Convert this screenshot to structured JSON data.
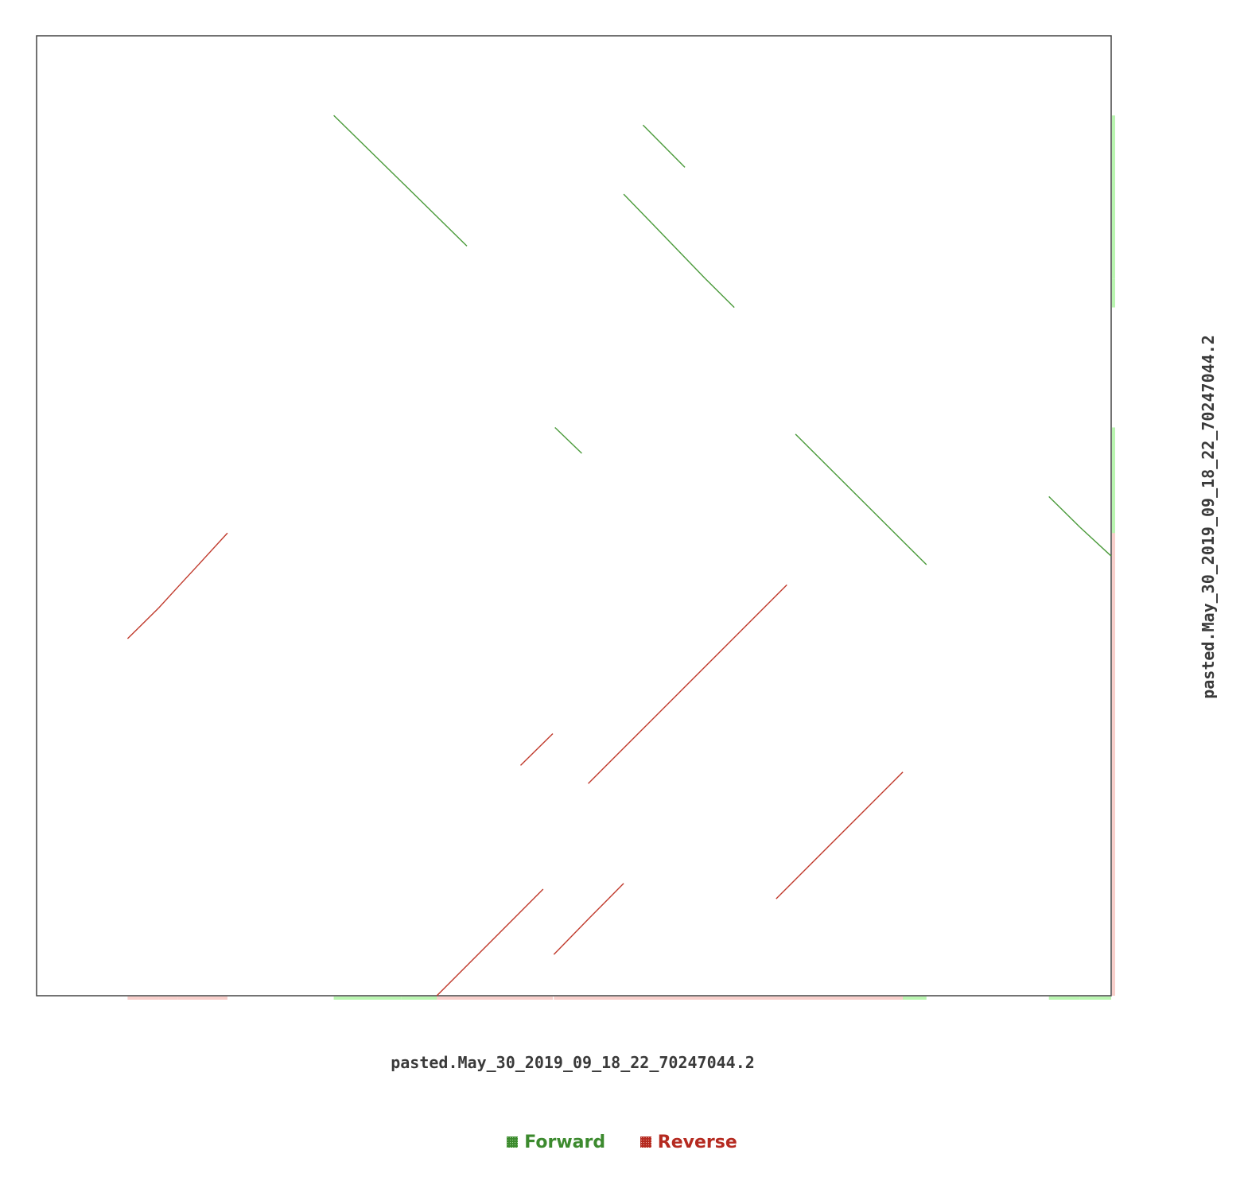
{
  "chart_data": {
    "type": "scatter",
    "plot_style": "dotplot",
    "title": "",
    "xlabel": "pasted.May_30_2019_09_18_22_70247044.2",
    "ylabel": "pasted.May_30_2019_09_18_22_70247044.2",
    "xlim": [
      0,
      1000
    ],
    "ylim": [
      0,
      1000
    ],
    "y_axis_inverted": true,
    "grid": false,
    "legend_position": "bottom-center",
    "legend": [
      {
        "name": "Forward",
        "color": "#3c8a2e"
      },
      {
        "name": "Reverse",
        "color": "#b52a20"
      }
    ],
    "colors": {
      "forward_line": "#4a9a3a",
      "reverse_line": "#c0392b",
      "forward_shadow": "#b9f5b0",
      "reverse_shadow": "#f8cfcb",
      "frame": "#444444"
    },
    "series": [
      {
        "name": "Forward",
        "segments": [
          {
            "x": [
              276,
              339
            ],
            "y": [
              83,
              152
            ]
          },
          {
            "x": [
              339,
              400
            ],
            "y": [
              152,
              219
            ]
          },
          {
            "x": [
              564,
              603
            ],
            "y": [
              93,
              137
            ]
          },
          {
            "x": [
              546,
              572
            ],
            "y": [
              165,
              195
            ]
          },
          {
            "x": [
              572,
              622
            ],
            "y": [
              195,
              253
            ]
          },
          {
            "x": [
              622,
              649
            ],
            "y": [
              253,
              283
            ]
          },
          {
            "x": [
              482,
              507
            ],
            "y": [
              408,
              435
            ]
          },
          {
            "x": [
              706,
              828
            ],
            "y": [
              415,
              551
            ]
          },
          {
            "x": [
              942,
              971
            ],
            "y": [
              480,
              512
            ]
          },
          {
            "x": [
              971,
              1000
            ],
            "y": [
              512,
              542
            ]
          }
        ]
      },
      {
        "name": "Reverse",
        "segments": [
          {
            "x": [
              84,
              94
            ],
            "y": [
              628,
              617
            ]
          },
          {
            "x": [
              94,
              113
            ],
            "y": [
              617,
              596
            ]
          },
          {
            "x": [
              113,
              131
            ],
            "y": [
              596,
              574
            ]
          },
          {
            "x": [
              131,
              150
            ],
            "y": [
              574,
              551
            ]
          },
          {
            "x": [
              150,
              177
            ],
            "y": [
              551,
              518
            ]
          },
          {
            "x": [
              450,
              480
            ],
            "y": [
              760,
              727
            ]
          },
          {
            "x": [
              513,
              698
            ],
            "y": [
              779,
              572
            ]
          },
          {
            "x": [
              688,
              806
            ],
            "y": [
              899,
              767
            ]
          },
          {
            "x": [
              372,
              471
            ],
            "y": [
              1000,
              889
            ]
          },
          {
            "x": [
              481,
              515
            ],
            "y": [
              957,
              918
            ]
          },
          {
            "x": [
              515,
              546
            ],
            "y": [
              918,
              883
            ]
          }
        ]
      }
    ]
  }
}
